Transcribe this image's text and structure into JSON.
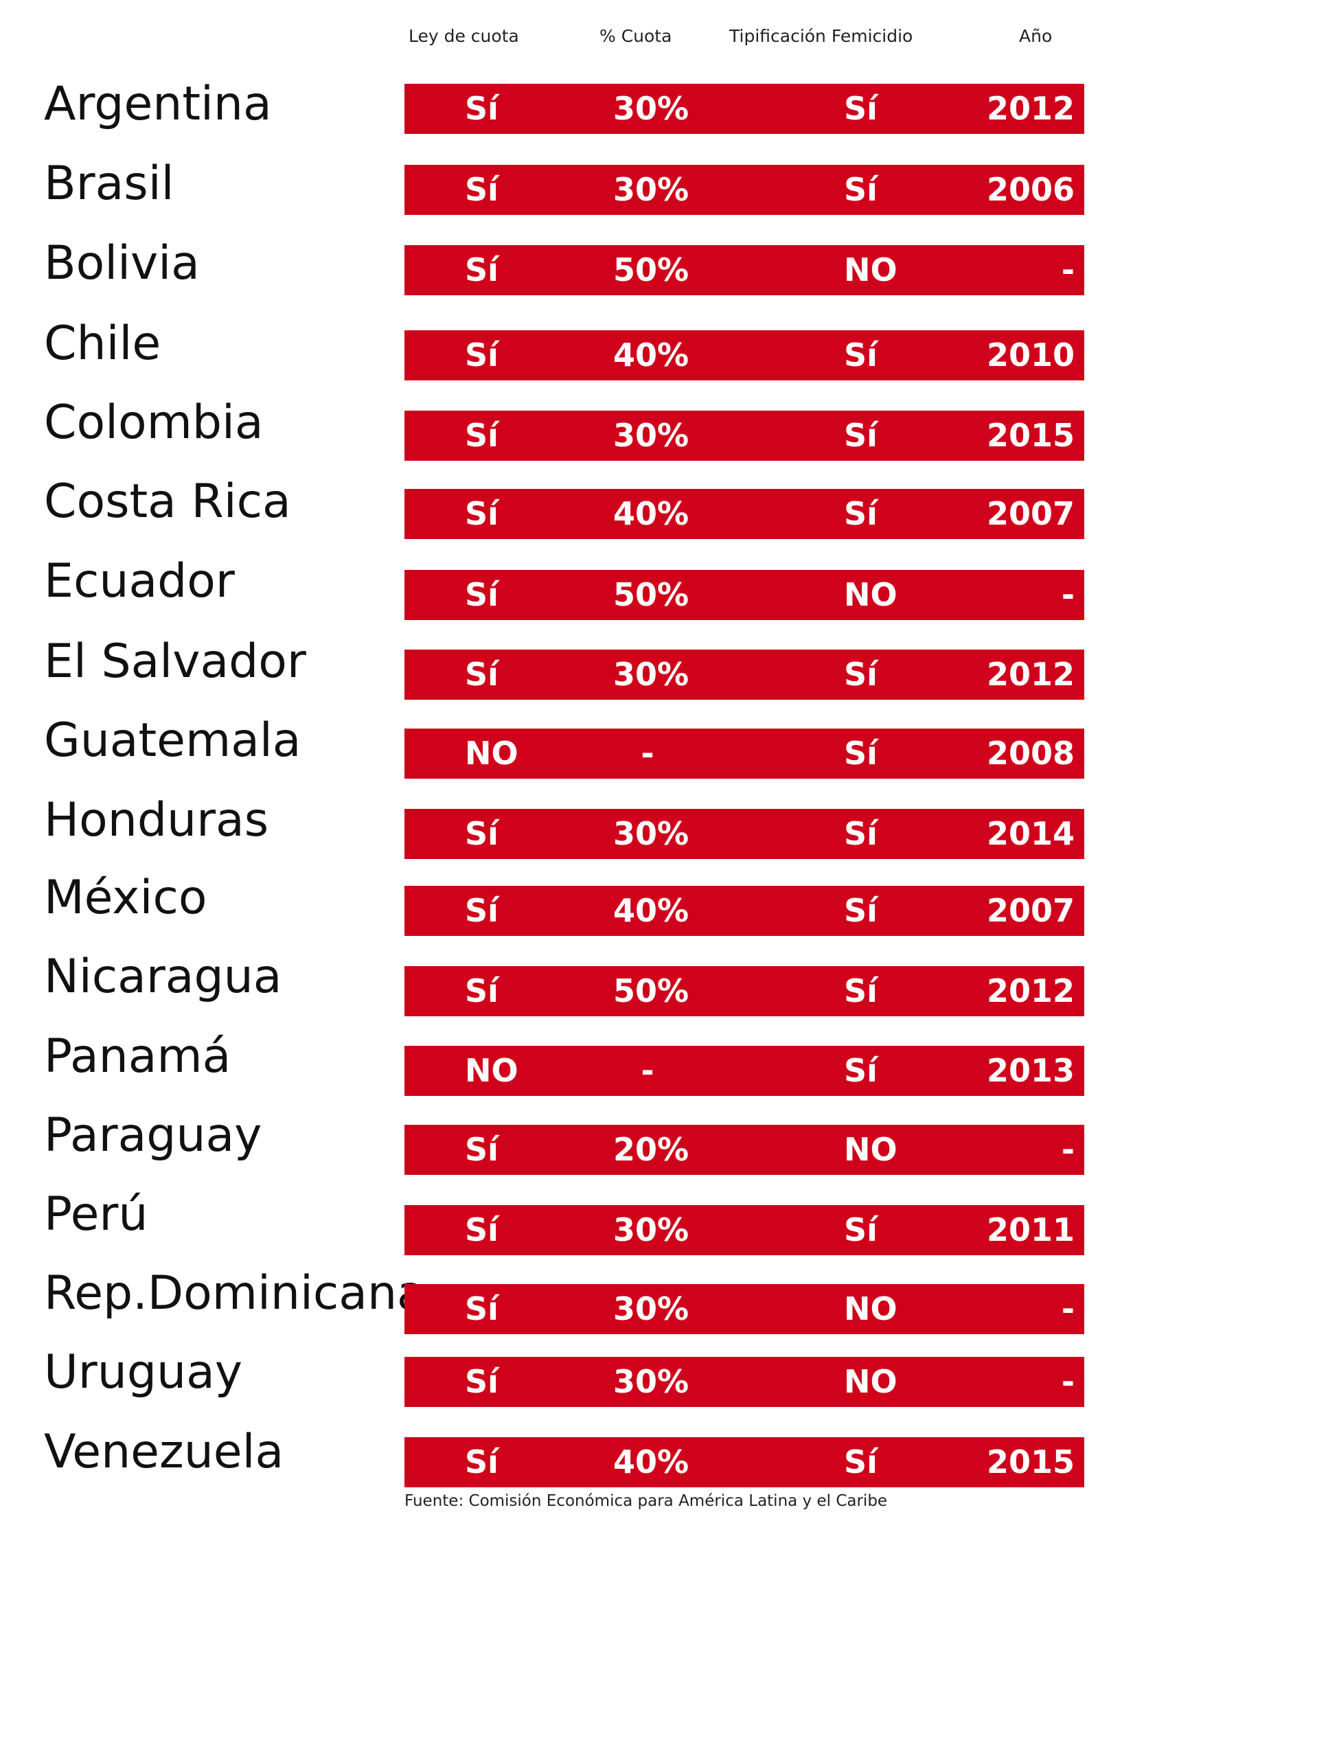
{
  "headers": {
    "ley": "Ley de cuota",
    "cuota": "% Cuota",
    "tipificacion": "Tipificación Femicidio",
    "anio": "Año"
  },
  "colors": {
    "bar": "#d0021b",
    "bar_text": "#ffffff",
    "label": "#111111"
  },
  "rows": [
    {
      "country": "Argentina",
      "ley": "Sí",
      "cuota": "30%",
      "femicidio": "Sí",
      "anio": "2012"
    },
    {
      "country": "Brasil",
      "ley": "Sí",
      "cuota": "30%",
      "femicidio": "Sí",
      "anio": "2006"
    },
    {
      "country": "Bolivia",
      "ley": "Sí",
      "cuota": "50%",
      "femicidio": "NO",
      "anio": "-"
    },
    {
      "country": "Chile",
      "ley": "Sí",
      "cuota": "40%",
      "femicidio": "Sí",
      "anio": "2010"
    },
    {
      "country": "Colombia",
      "ley": "Sí",
      "cuota": "30%",
      "femicidio": "Sí",
      "anio": "2015"
    },
    {
      "country": "Costa Rica",
      "ley": "Sí",
      "cuota": "40%",
      "femicidio": "Sí",
      "anio": "2007"
    },
    {
      "country": "Ecuador",
      "ley": "Sí",
      "cuota": "50%",
      "femicidio": "NO",
      "anio": "-"
    },
    {
      "country": "El Salvador",
      "ley": "Sí",
      "cuota": "30%",
      "femicidio": "Sí",
      "anio": "2012"
    },
    {
      "country": "Guatemala",
      "ley": "NO",
      "cuota": "-",
      "femicidio": "Sí",
      "anio": "2008"
    },
    {
      "country": "Honduras",
      "ley": "Sí",
      "cuota": "30%",
      "femicidio": "Sí",
      "anio": "2014"
    },
    {
      "country": "México",
      "ley": "Sí",
      "cuota": "40%",
      "femicidio": "Sí",
      "anio": "2007"
    },
    {
      "country": "Nicaragua",
      "ley": "Sí",
      "cuota": "50%",
      "femicidio": "Sí",
      "anio": "2012"
    },
    {
      "country": "Panamá",
      "ley": "NO",
      "cuota": "-",
      "femicidio": "Sí",
      "anio": "2013"
    },
    {
      "country": "Paraguay",
      "ley": "Sí",
      "cuota": "20%",
      "femicidio": "NO",
      "anio": "-"
    },
    {
      "country": "Perú",
      "ley": "Sí",
      "cuota": "30%",
      "femicidio": "Sí",
      "anio": "2011"
    },
    {
      "country": "Rep.Dominicana",
      "ley": "Sí",
      "cuota": "30%",
      "femicidio": "NO",
      "anio": "-"
    },
    {
      "country": "Uruguay",
      "ley": "Sí",
      "cuota": "30%",
      "femicidio": "NO",
      "anio": "-"
    },
    {
      "country": "Venezuela",
      "ley": "Sí",
      "cuota": "40%",
      "femicidio": "Sí",
      "anio": "2015"
    }
  ],
  "chart_data": {
    "type": "table",
    "columns": [
      "Ley de cuota",
      "% Cuota",
      "Tipificación Femicidio",
      "Año"
    ],
    "row_labels": [
      "Argentina",
      "Brasil",
      "Bolivia",
      "Chile",
      "Colombia",
      "Costa Rica",
      "Ecuador",
      "El Salvador",
      "Guatemala",
      "Honduras",
      "México",
      "Nicaragua",
      "Panamá",
      "Paraguay",
      "Perú",
      "Rep.Dominicana",
      "Uruguay",
      "Venezuela"
    ],
    "cells": [
      [
        "Sí",
        "30%",
        "Sí",
        "2012"
      ],
      [
        "Sí",
        "30%",
        "Sí",
        "2006"
      ],
      [
        "Sí",
        "50%",
        "NO",
        "-"
      ],
      [
        "Sí",
        "40%",
        "Sí",
        "2010"
      ],
      [
        "Sí",
        "30%",
        "Sí",
        "2015"
      ],
      [
        "Sí",
        "40%",
        "Sí",
        "2007"
      ],
      [
        "Sí",
        "50%",
        "NO",
        "-"
      ],
      [
        "Sí",
        "30%",
        "Sí",
        "2012"
      ],
      [
        "NO",
        "-",
        "Sí",
        "2008"
      ],
      [
        "Sí",
        "30%",
        "Sí",
        "2014"
      ],
      [
        "Sí",
        "40%",
        "Sí",
        "2007"
      ],
      [
        "Sí",
        "50%",
        "Sí",
        "2012"
      ],
      [
        "NO",
        "-",
        "Sí",
        "2013"
      ],
      [
        "Sí",
        "20%",
        "NO",
        "-"
      ],
      [
        "Sí",
        "30%",
        "Sí",
        "2011"
      ],
      [
        "Sí",
        "30%",
        "NO",
        "-"
      ],
      [
        "Sí",
        "30%",
        "NO",
        "-"
      ],
      [
        "Sí",
        "40%",
        "Sí",
        "2015"
      ]
    ]
  },
  "source": "Fuente: Comisión Económica para América Latina y el Caribe"
}
